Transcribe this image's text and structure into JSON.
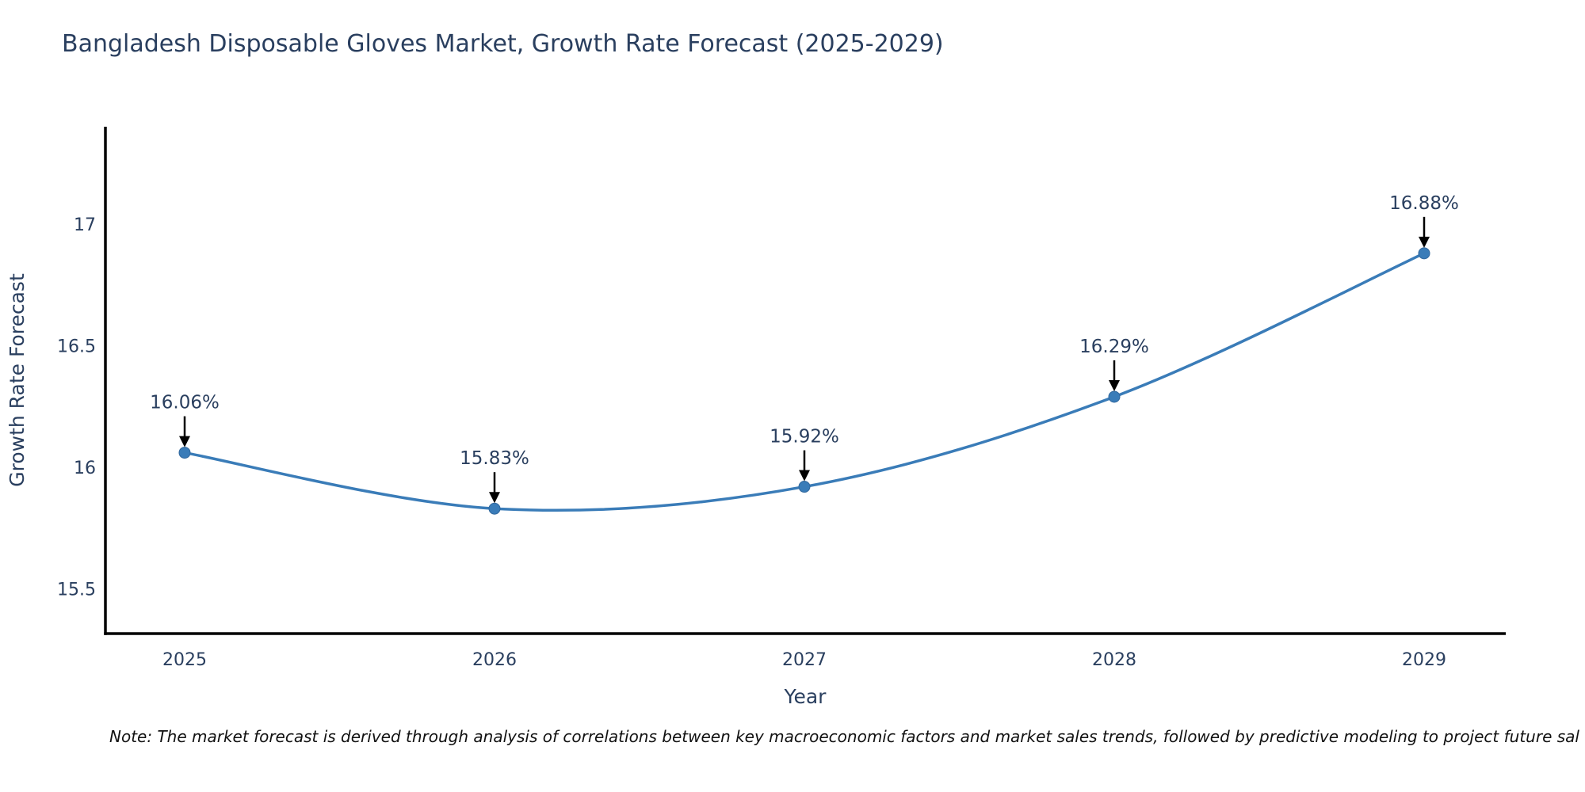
{
  "chart_data": {
    "type": "line",
    "title": "Bangladesh Disposable Gloves Market, Growth Rate Forecast (2025-2029)",
    "xlabel": "Year",
    "ylabel": "Growth Rate Forecast",
    "categories": [
      "2025",
      "2026",
      "2027",
      "2028",
      "2029"
    ],
    "x": [
      2025,
      2026,
      2027,
      2028,
      2029
    ],
    "values": [
      16.06,
      15.83,
      15.92,
      16.29,
      16.88
    ],
    "point_labels": [
      "16.06%",
      "15.83%",
      "15.92%",
      "16.29%",
      "16.88%"
    ],
    "yticks": [
      15.5,
      16,
      16.5,
      17
    ],
    "ytick_labels": [
      "15.5",
      "16",
      "16.5",
      "17"
    ],
    "ylim": [
      15.32,
      17.4
    ],
    "line_shape": "spline",
    "grid": false,
    "legend": false,
    "annotation_arrows": true,
    "colors": {
      "line": "#3a7cb8",
      "marker": "#3a7cb8",
      "marker_edge": "#31689e",
      "axis_text": "#2a3f5f",
      "annotation_text": "#2a3f5f",
      "spine": "#000000",
      "arrow": "#000000",
      "note_text": "#111111",
      "background": "#ffffff"
    }
  },
  "note": {
    "text": "Note: The market forecast is derived through analysis of correlations between key macroeconomic factors and market sales trends, followed by predictive modeling to project future sal"
  }
}
